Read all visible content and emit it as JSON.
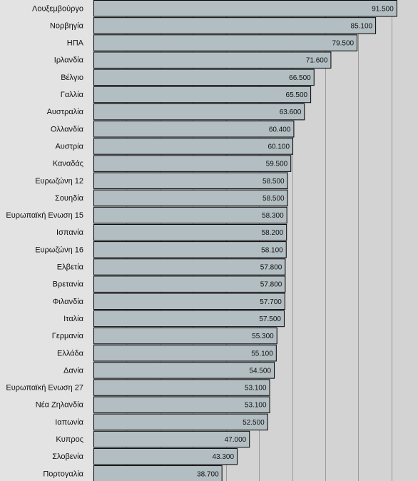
{
  "chart_data": {
    "type": "bar",
    "orientation": "horizontal",
    "categories": [
      "Λουξεμβούργο",
      "Νορβηγία",
      "ΗΠΑ",
      "Ιρλανδία",
      "Βέλγιο",
      "Γαλλία",
      "Αυστραλία",
      "Ολλανδία",
      "Αυστρία",
      "Καναδάς",
      "Ευρωζώνη 12",
      "Σουηδία",
      "Ευρωπαϊκή Ενωση 15",
      "Ισπανία",
      "Ευρωζώνη 16",
      "Ελβετία",
      "Βρετανία",
      "Φιλανδία",
      "Ιταλία",
      "Γερμανία",
      "Ελλάδα",
      "Δανία",
      "Ευρωπαϊκή Ενωση 27",
      "Νέα Ζηλανδία",
      "Ιαπωνία",
      "Κυπρος",
      "Σλοβενία",
      "Πορτογαλία"
    ],
    "values": [
      91500,
      85100,
      79500,
      71600,
      66500,
      65500,
      63600,
      60400,
      60100,
      59500,
      58500,
      58500,
      58300,
      58200,
      58100,
      57800,
      57800,
      57700,
      57500,
      55300,
      55100,
      54500,
      53100,
      53100,
      52500,
      47000,
      43300,
      38700
    ],
    "value_labels": [
      "91.500",
      "85.100",
      "79.500",
      "71.600",
      "66.500",
      "65.500",
      "63.600",
      "60.400",
      "60.100",
      "59.500",
      "58.500",
      "58.500",
      "58.300",
      "58.200",
      "58.100",
      "57.800",
      "57.800",
      "57.700",
      "57.500",
      "55.300",
      "55.100",
      "54.500",
      "53.100",
      "53.100",
      "52.500",
      "47.000",
      "43.300",
      "38.700"
    ],
    "xlim": [
      0,
      98000
    ],
    "grid": true,
    "gridlines": [
      10000,
      20000,
      30000,
      40000,
      50000,
      60000,
      70000,
      80000,
      90000
    ],
    "colors": {
      "bar": "#b3bec3",
      "edge": "#000000",
      "plot_bg": "#d3d3d3",
      "label_bg": "#e3e3e3",
      "grid": "#9a9a9a"
    }
  }
}
